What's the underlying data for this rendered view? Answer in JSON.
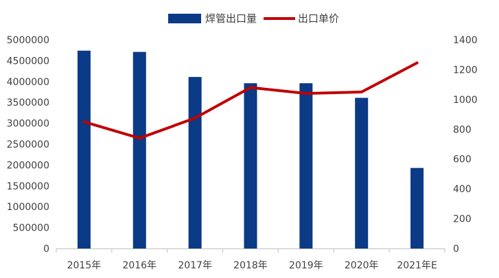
{
  "chart_data": {
    "type": "bar",
    "categories": [
      "2015年",
      "2016年",
      "2017年",
      "2018年",
      "2019年",
      "2020年",
      "2021年E"
    ],
    "series": [
      {
        "name": "焊管出口量",
        "type": "bar",
        "axis": "left",
        "color": "#0b3a86",
        "values": [
          4740000,
          4710000,
          4110000,
          3960000,
          3960000,
          3610000,
          1930000
        ]
      },
      {
        "name": "出口单价",
        "type": "line",
        "axis": "right",
        "color": "#c00000",
        "values": [
          850,
          740,
          875,
          1080,
          1040,
          1050,
          1245
        ]
      }
    ],
    "yleft": {
      "min": 0,
      "max": 5000000,
      "ticks": [
        "0",
        "500000",
        "1000000",
        "1500000",
        "2000000",
        "2500000",
        "3000000",
        "3500000",
        "4000000",
        "4500000",
        "5000000"
      ]
    },
    "yright": {
      "min": 0,
      "max": 1400,
      "ticks": [
        "0",
        "200",
        "400",
        "600",
        "800",
        "1000",
        "1200",
        "1400"
      ]
    },
    "legend_position": "top-center",
    "grid": false
  }
}
